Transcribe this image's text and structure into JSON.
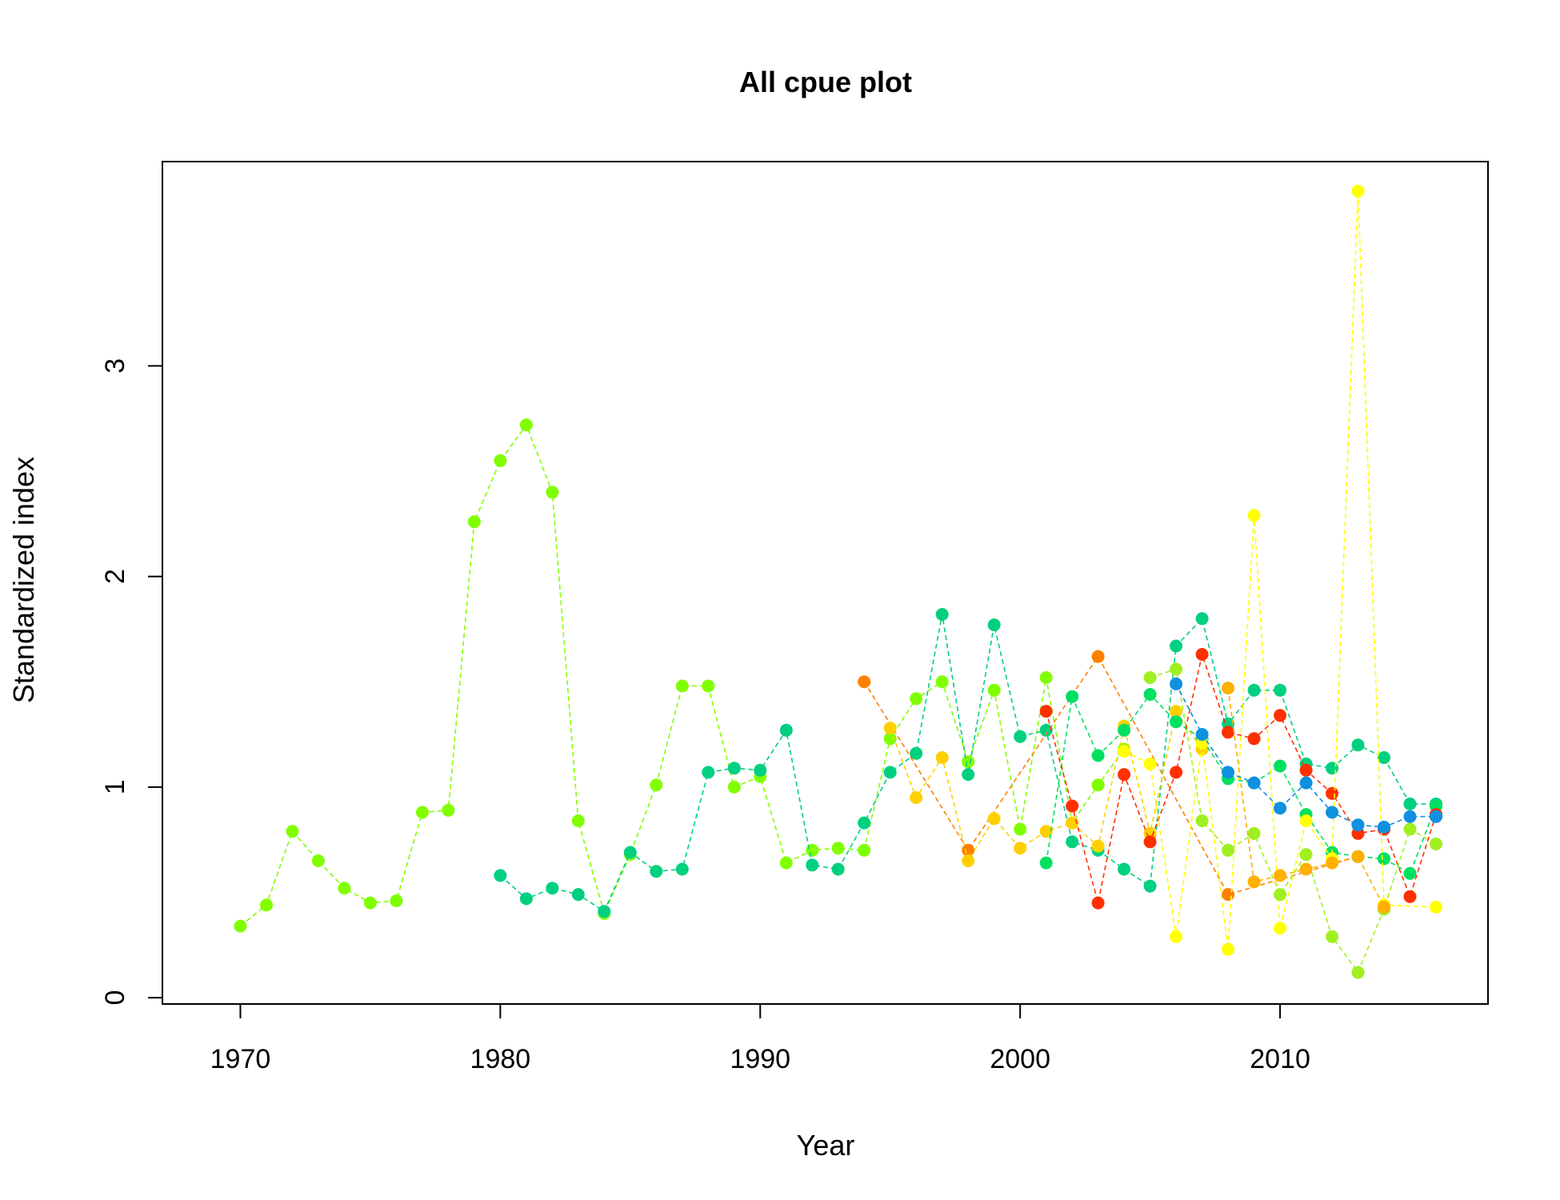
{
  "chart_data": {
    "type": "line",
    "title": "All cpue plot",
    "xlabel": "Year",
    "ylabel": "Standardized index",
    "xlim": [
      1967,
      2018
    ],
    "ylim": [
      -0.03,
      3.97
    ],
    "xticks": [
      1970,
      1980,
      1990,
      2000,
      2010
    ],
    "yticks": [
      0,
      1,
      2,
      3
    ],
    "grid": false,
    "legend": "none",
    "series": [
      {
        "color": "#80ff00",
        "x": [
          1970,
          1971,
          1972,
          1973,
          1974,
          1975,
          1976,
          1977,
          1978,
          1979,
          1980,
          1981,
          1982,
          1983,
          1984,
          1985,
          1986,
          1987,
          1988,
          1989,
          1990,
          1991,
          1992,
          1993,
          1994,
          1995,
          1996,
          1997,
          1998,
          1999,
          2000,
          2001,
          2002,
          2003,
          2004
        ],
        "y": [
          0.34,
          0.44,
          0.79,
          0.65,
          0.52,
          0.45,
          0.46,
          0.88,
          0.89,
          2.26,
          2.55,
          2.72,
          2.4,
          0.84,
          0.4,
          0.68,
          1.01,
          1.48,
          1.48,
          1.0,
          1.05,
          0.64,
          0.7,
          0.71,
          0.7,
          1.23,
          1.42,
          1.5,
          1.12,
          1.46,
          0.8,
          1.52,
          0.83,
          1.01,
          1.18
        ]
      },
      {
        "color": "#00d080",
        "x": [
          1980,
          1981,
          1982,
          1983,
          1984,
          1985,
          1986,
          1987,
          1988,
          1989,
          1990,
          1991,
          1992,
          1993,
          1994,
          1995,
          1996,
          1997,
          1998,
          1999,
          2000,
          2001,
          2002,
          2003,
          2004,
          2005,
          2006,
          2007,
          2008,
          2009,
          2010,
          2011,
          2012,
          2013,
          2014,
          2015,
          2016
        ],
        "y": [
          0.58,
          0.47,
          0.52,
          0.49,
          0.41,
          0.69,
          0.6,
          0.61,
          1.07,
          1.09,
          1.08,
          1.27,
          0.63,
          0.61,
          0.83,
          1.07,
          1.16,
          1.82,
          1.06,
          1.77,
          1.24,
          1.27,
          0.74,
          0.7,
          0.61,
          0.53,
          1.67,
          1.8,
          1.3,
          1.46,
          1.46,
          1.11,
          1.09,
          1.2,
          1.14,
          0.92,
          0.92
        ]
      },
      {
        "color": "#ff8000",
        "x": [
          1994,
          1998,
          2003,
          2008,
          2013
        ],
        "y": [
          1.5,
          0.7,
          1.62,
          0.49,
          0.67
        ]
      },
      {
        "color": "#ffd000",
        "x": [
          1995,
          1996,
          1997,
          1998,
          1999,
          2000,
          2001,
          2002,
          2003,
          2004,
          2005,
          2006,
          2007
        ],
        "y": [
          1.28,
          0.95,
          1.14,
          0.65,
          0.85,
          0.71,
          0.79,
          0.83,
          0.72,
          1.29,
          0.78,
          1.36,
          1.18
        ]
      },
      {
        "color": "#00e060",
        "x": [
          2001,
          2002,
          2003,
          2004,
          2005,
          2006,
          2007,
          2008,
          2009,
          2010,
          2011,
          2012,
          2013,
          2014,
          2015,
          2016
        ],
        "y": [
          0.64,
          1.43,
          1.15,
          1.27,
          1.44,
          1.31,
          1.23,
          1.04,
          1.02,
          1.1,
          0.87,
          0.69,
          0.67,
          0.66,
          0.59,
          0.91
        ]
      },
      {
        "color": "#ff3000",
        "x": [
          2001,
          2002,
          2003,
          2004,
          2005,
          2006,
          2007,
          2008,
          2009,
          2010,
          2011,
          2012,
          2013,
          2014,
          2015,
          2016
        ],
        "y": [
          1.36,
          0.91,
          0.45,
          1.06,
          0.74,
          1.07,
          1.63,
          1.26,
          1.23,
          1.34,
          1.08,
          0.97,
          0.78,
          0.8,
          0.48,
          0.87
        ]
      },
      {
        "color": "#ffff00",
        "x": [
          2004,
          2005,
          2006,
          2007,
          2008,
          2009,
          2010,
          2011,
          2012,
          2013,
          2014,
          2016
        ],
        "y": [
          1.17,
          1.11,
          0.29,
          1.21,
          0.23,
          2.29,
          0.33,
          0.84,
          0.66,
          3.83,
          0.44,
          0.43
        ]
      },
      {
        "color": "#a0f020",
        "x": [
          2005,
          2006,
          2007,
          2008,
          2009,
          2010,
          2011,
          2012,
          2013,
          2014,
          2015,
          2016
        ],
        "y": [
          1.52,
          1.56,
          0.84,
          0.7,
          0.78,
          0.49,
          0.68,
          0.29,
          0.12,
          0.42,
          0.8,
          0.73
        ]
      },
      {
        "color": "#ffb000",
        "x": [
          2008,
          2009,
          2010,
          2011,
          2012,
          2013,
          2014
        ],
        "y": [
          1.47,
          0.55,
          0.58,
          0.61,
          0.64,
          0.67,
          0.43
        ]
      },
      {
        "color": "#1090e0",
        "x": [
          2006,
          2007,
          2008,
          2009,
          2010,
          2011,
          2012,
          2013,
          2014,
          2015,
          2016
        ],
        "y": [
          1.49,
          1.25,
          1.07,
          1.02,
          0.9,
          1.02,
          0.88,
          0.82,
          0.81,
          0.86,
          0.86
        ]
      }
    ]
  }
}
